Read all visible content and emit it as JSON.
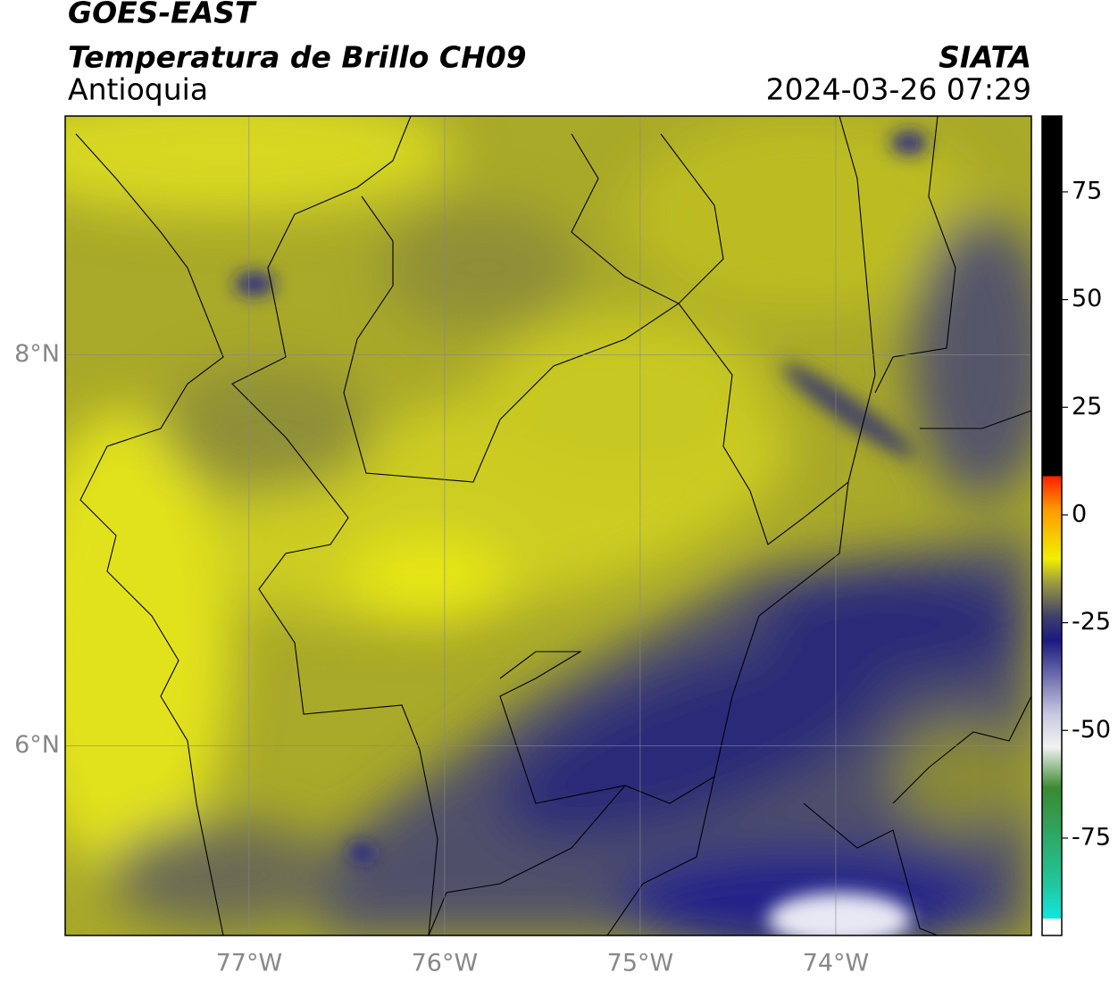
{
  "header": {
    "title": "GOES-EAST",
    "subtitle": "Temperatura de Brillo CH09",
    "region": "Antioquia",
    "source": "SIATA",
    "datetime": "2024-03-26 07:29"
  },
  "map": {
    "xlim": [
      -77.94,
      -73.0
    ],
    "ylim": [
      5.03,
      9.22
    ],
    "xticks": [
      {
        "value": -77,
        "label": "77°W"
      },
      {
        "value": -76,
        "label": "76°W"
      },
      {
        "value": -75,
        "label": "75°W"
      },
      {
        "value": -74,
        "label": "74°W"
      }
    ],
    "yticks": [
      {
        "value": 8,
        "label": "8°N"
      },
      {
        "value": 6,
        "label": "6°N"
      }
    ],
    "grid": true
  },
  "colorbar": {
    "lim": [
      -97.6,
      92.6
    ],
    "ticks": [
      75,
      50,
      25,
      0,
      -25,
      -50,
      -75
    ]
  }
}
